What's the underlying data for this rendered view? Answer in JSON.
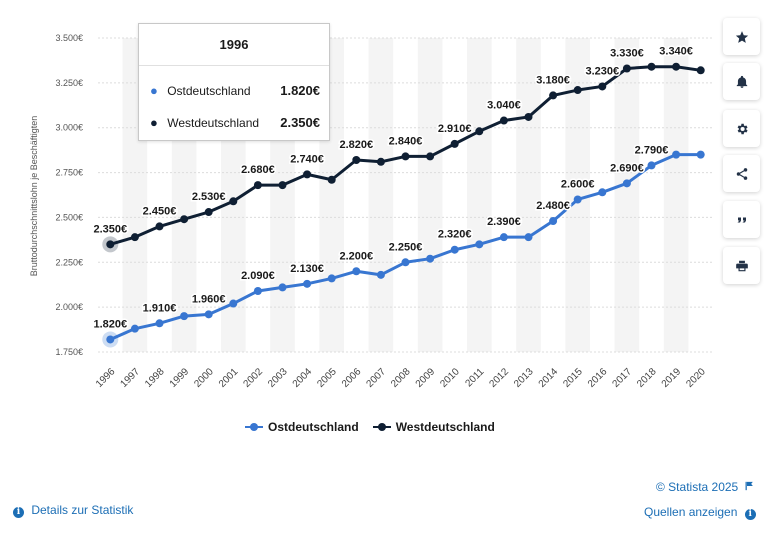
{
  "chart_data": {
    "type": "line",
    "ylabel": "Bruttodurchschnittslohn je Beschäftigten",
    "xlabel": "",
    "categories": [
      "1996",
      "1997",
      "1998",
      "1999",
      "2000",
      "2001",
      "2002",
      "2003",
      "2004",
      "2005",
      "2006",
      "2007",
      "2008",
      "2009",
      "2010",
      "2011",
      "2012",
      "2013",
      "2014",
      "2015",
      "2016",
      "2017",
      "2018",
      "2019",
      "2020"
    ],
    "ylim": [
      1750,
      3500
    ],
    "yticks": [
      1750,
      2000,
      2250,
      2500,
      2750,
      3000,
      3250,
      3500
    ],
    "ytick_labels": [
      "1.750€",
      "2.000€",
      "2.250€",
      "2.500€",
      "2.750€",
      "3.000€",
      "3.250€",
      "3.500€"
    ],
    "series": [
      {
        "name": "Ostdeutschland",
        "color": "#3876d1",
        "values": [
          1820,
          1880,
          1910,
          1950,
          1960,
          2020,
          2090,
          2110,
          2130,
          2160,
          2200,
          2180,
          2250,
          2270,
          2320,
          2350,
          2390,
          2390,
          2480,
          2600,
          2640,
          2690,
          2790,
          2850,
          2850
        ],
        "labels": [
          "1.820€",
          null,
          "1.910€",
          null,
          "1.960€",
          null,
          "2.090€",
          null,
          "2.130€",
          null,
          "2.200€",
          null,
          "2.250€",
          null,
          "2.320€",
          null,
          "2.390€",
          null,
          "2.480€",
          "2.600€",
          null,
          "2.690€",
          "2.790€",
          null,
          null
        ]
      },
      {
        "name": "Westdeutschland",
        "color": "#0f1f33",
        "values": [
          2350,
          2390,
          2450,
          2490,
          2530,
          2590,
          2680,
          2680,
          2740,
          2710,
          2820,
          2810,
          2840,
          2840,
          2910,
          2980,
          3040,
          3060,
          3180,
          3210,
          3230,
          3330,
          3340,
          3340,
          3320
        ],
        "labels": [
          "2.350€",
          null,
          "2.450€",
          null,
          "2.530€",
          null,
          "2.680€",
          null,
          "2.740€",
          null,
          "2.820€",
          null,
          "2.840€",
          null,
          "2.910€",
          null,
          "3.040€",
          null,
          "3.180€",
          null,
          "3.230€",
          "3.330€",
          null,
          "3.340€",
          null
        ]
      }
    ],
    "grid": true,
    "legend": "bottom-center"
  },
  "tooltip": {
    "title": "1996",
    "rows": [
      {
        "name": "Ostdeutschland",
        "value": "1.820€",
        "color": "#3876d1"
      },
      {
        "name": "Westdeutschland",
        "value": "2.350€",
        "color": "#0f1f33"
      }
    ]
  },
  "sidebar": {
    "buttons": [
      {
        "icon": "star-icon"
      },
      {
        "icon": "bell-icon"
      },
      {
        "icon": "gear-icon"
      },
      {
        "icon": "share-icon"
      },
      {
        "icon": "quote-icon"
      },
      {
        "icon": "print-icon"
      }
    ]
  },
  "footer": {
    "copyright": "© Statista 2025",
    "details_label": "Details zur Statistik",
    "sources_label": "Quellen anzeigen"
  }
}
